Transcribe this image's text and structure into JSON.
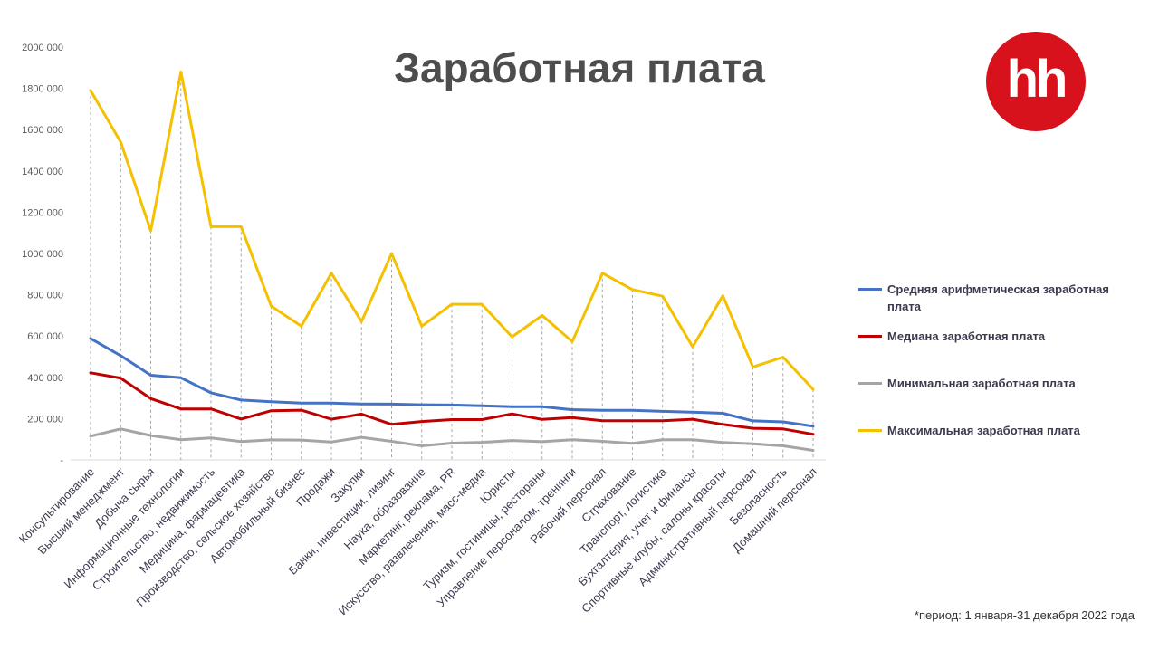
{
  "title": "Заработная плата",
  "logo_text": "hh",
  "footnote": "*период: 1 января-31 декабря 2022 года",
  "chart_data": {
    "type": "line",
    "title": "Заработная плата",
    "xlabel": "",
    "ylabel": "",
    "ylim": [
      0,
      2000000
    ],
    "yticks": [
      0,
      200000,
      400000,
      600000,
      800000,
      1000000,
      1200000,
      1400000,
      1600000,
      1800000,
      2000000
    ],
    "ytick_labels": [
      "-",
      "200 000",
      "400 000",
      "600 000",
      "800 000",
      "1000 000",
      "1200 000",
      "1400 000",
      "1600 000",
      "1800 000",
      "2000 000"
    ],
    "grid": "vertical dashed drop lines",
    "legend_position": "right",
    "categories": [
      "Консультирование",
      "Высший менеджмент",
      "Добыча сырья",
      "Информационные технологии",
      "Строительство, недвижимость",
      "Медицина, фармацевтика",
      "Производство, сельское хозяйство",
      "Автомобильный бизнес",
      "Продажи",
      "Закупки",
      "Банки, инвестиции, лизинг",
      "Наука, образование",
      "Маркетинг, реклама, PR",
      "Искусство, развлечения, масс-медиа",
      "Юристы",
      "Туризм, гостиницы, рестораны",
      "Управление персоналом, тренинги",
      "Рабочий персонал",
      "Страхование",
      "Транспорт, логистика",
      "Бухгалтерия, учет и финансы",
      "Спортивные клубы, салоны красоты",
      "Административный персонал",
      "Безопасность",
      "Домашний персонал"
    ],
    "series": [
      {
        "name": "Средняя арифметическая заработная плата",
        "color": "#4472c4",
        "values": [
          588000,
          505000,
          410000,
          398000,
          325000,
          290000,
          282000,
          275000,
          275000,
          271000,
          270000,
          267000,
          266000,
          262000,
          258000,
          258000,
          243000,
          240000,
          240000,
          235000,
          231000,
          226000,
          189000,
          184000,
          163000
        ]
      },
      {
        "name": "Медиана заработная плата",
        "color": "#c00000",
        "values": [
          422000,
          396000,
          297000,
          247000,
          247000,
          198000,
          238000,
          241000,
          197000,
          222000,
          172000,
          186000,
          195000,
          195000,
          223000,
          196000,
          205000,
          190000,
          190000,
          190000,
          197000,
          172000,
          153000,
          150000,
          124000
        ]
      },
      {
        "name": "Минимальная заработная плата",
        "color": "#a5a5a5",
        "values": [
          115000,
          150000,
          118000,
          98000,
          106000,
          89000,
          97000,
          96000,
          87000,
          109000,
          90000,
          68000,
          81000,
          85000,
          94000,
          88000,
          98000,
          90000,
          80000,
          98000,
          98000,
          84000,
          78000,
          68000,
          46000
        ]
      },
      {
        "name": "Максимальная заработная плата",
        "color": "#f5c000",
        "values": [
          1790000,
          1540000,
          1110000,
          1880000,
          1130000,
          1130000,
          745000,
          648000,
          905000,
          670000,
          1000000,
          648000,
          754000,
          754000,
          596000,
          700000,
          573000,
          905000,
          825000,
          793000,
          548000,
          795000,
          450000,
          498000,
          342000
        ]
      }
    ]
  }
}
